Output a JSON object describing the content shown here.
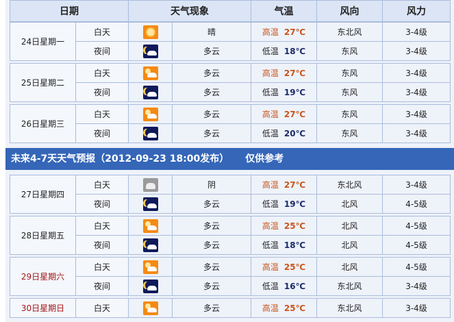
{
  "header": [
    "日期",
    "天气现象",
    "气温",
    "风向",
    "风力"
  ],
  "banner": {
    "title": "未来4-7天天气预报（2012-09-23 18:00发布）",
    "note": "仅供参考"
  },
  "groups": [
    {
      "date": "24日星期一",
      "weekend": false,
      "rows": [
        {
          "period": "白天",
          "icon": "sunny",
          "weather": "晴",
          "temp_label": "高温",
          "temp": "27℃",
          "dir": "东北风",
          "force": "3-4级"
        },
        {
          "period": "夜间",
          "icon": "night-cloudy",
          "weather": "多云",
          "temp_label": "低温",
          "temp": "18℃",
          "dir": "东风",
          "force": "3-4级"
        }
      ]
    },
    {
      "date": "25日星期二",
      "weekend": false,
      "rows": [
        {
          "period": "白天",
          "icon": "partly-cloudy",
          "weather": "多云",
          "temp_label": "高温",
          "temp": "27℃",
          "dir": "东风",
          "force": "3-4级"
        },
        {
          "period": "夜间",
          "icon": "night-cloudy",
          "weather": "多云",
          "temp_label": "低温",
          "temp": "19℃",
          "dir": "东风",
          "force": "3-4级"
        }
      ]
    },
    {
      "date": "26日星期三",
      "weekend": false,
      "rows": [
        {
          "period": "白天",
          "icon": "partly-cloudy",
          "weather": "多云",
          "temp_label": "高温",
          "temp": "27℃",
          "dir": "东风",
          "force": "3-4级"
        },
        {
          "period": "夜间",
          "icon": "night-cloudy",
          "weather": "多云",
          "temp_label": "低温",
          "temp": "20℃",
          "dir": "东风",
          "force": "3-4级"
        }
      ]
    },
    {
      "date": "27日星期四",
      "weekend": false,
      "rows": [
        {
          "period": "白天",
          "icon": "overcast",
          "weather": "阴",
          "temp_label": "高温",
          "temp": "27℃",
          "dir": "东北风",
          "force": "3-4级"
        },
        {
          "period": "夜间",
          "icon": "night-cloudy",
          "weather": "多云",
          "temp_label": "低温",
          "temp": "19℃",
          "dir": "北风",
          "force": "4-5级"
        }
      ]
    },
    {
      "date": "28日星期五",
      "weekend": false,
      "rows": [
        {
          "period": "白天",
          "icon": "partly-cloudy",
          "weather": "多云",
          "temp_label": "高温",
          "temp": "25℃",
          "dir": "北风",
          "force": "4-5级"
        },
        {
          "period": "夜间",
          "icon": "night-cloudy",
          "weather": "多云",
          "temp_label": "低温",
          "temp": "18℃",
          "dir": "北风",
          "force": "4-5级"
        }
      ]
    },
    {
      "date": "29日星期六",
      "weekend": true,
      "rows": [
        {
          "period": "白天",
          "icon": "partly-cloudy",
          "weather": "多云",
          "temp_label": "高温",
          "temp": "25℃",
          "dir": "北风",
          "force": "4-5级"
        },
        {
          "period": "夜间",
          "icon": "night-cloudy",
          "weather": "多云",
          "temp_label": "低温",
          "temp": "16℃",
          "dir": "东北风",
          "force": "3-4级"
        }
      ]
    },
    {
      "date": "30日星期日",
      "weekend": true,
      "rows": [
        {
          "period": "白天",
          "icon": "partly-cloudy",
          "weather": "多云",
          "temp_label": "高温",
          "temp": "25℃",
          "dir": "东北风",
          "force": "3-4级"
        }
      ]
    }
  ]
}
